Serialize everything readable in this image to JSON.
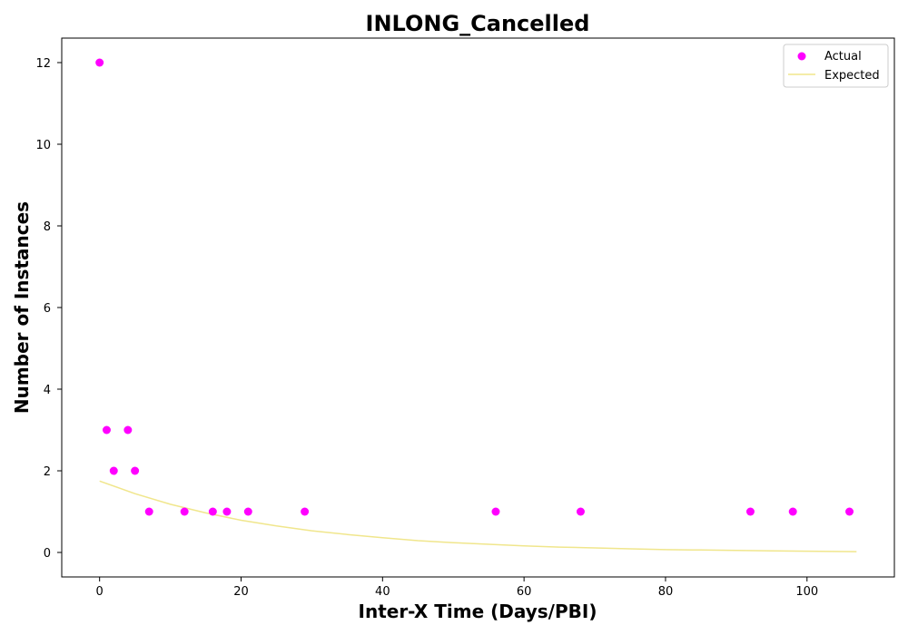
{
  "chart_data": {
    "type": "scatter",
    "title": "INLONG_Cancelled",
    "xlabel": "Inter-X Time (Days/PBI)",
    "ylabel": "Number of Instances",
    "xlim": [
      -5.35,
      112.35
    ],
    "ylim": [
      -0.6,
      12.6
    ],
    "xticks": [
      0,
      20,
      40,
      60,
      80,
      100
    ],
    "yticks": [
      0,
      2,
      4,
      6,
      8,
      10,
      12
    ],
    "legend_position": "top-right",
    "series": [
      {
        "name": "Actual",
        "kind": "scatter",
        "color": "#ff00ff",
        "x": [
          0,
          1,
          2,
          4,
          5,
          7,
          12,
          16,
          18,
          21,
          29,
          56,
          68,
          92,
          98,
          106
        ],
        "y": [
          12,
          3,
          2,
          3,
          2,
          1,
          1,
          1,
          1,
          1,
          1,
          1,
          1,
          1,
          1,
          1
        ]
      },
      {
        "name": "Expected",
        "kind": "line",
        "color": "#f0e68c",
        "x": [
          0,
          5,
          10,
          15,
          20,
          25,
          30,
          35,
          40,
          45,
          50,
          55,
          60,
          65,
          70,
          75,
          80,
          85,
          90,
          95,
          100,
          107
        ],
        "y": [
          1.75,
          1.44,
          1.18,
          0.97,
          0.79,
          0.65,
          0.53,
          0.44,
          0.36,
          0.29,
          0.24,
          0.2,
          0.16,
          0.13,
          0.11,
          0.09,
          0.07,
          0.06,
          0.05,
          0.04,
          0.03,
          0.02
        ]
      }
    ]
  }
}
